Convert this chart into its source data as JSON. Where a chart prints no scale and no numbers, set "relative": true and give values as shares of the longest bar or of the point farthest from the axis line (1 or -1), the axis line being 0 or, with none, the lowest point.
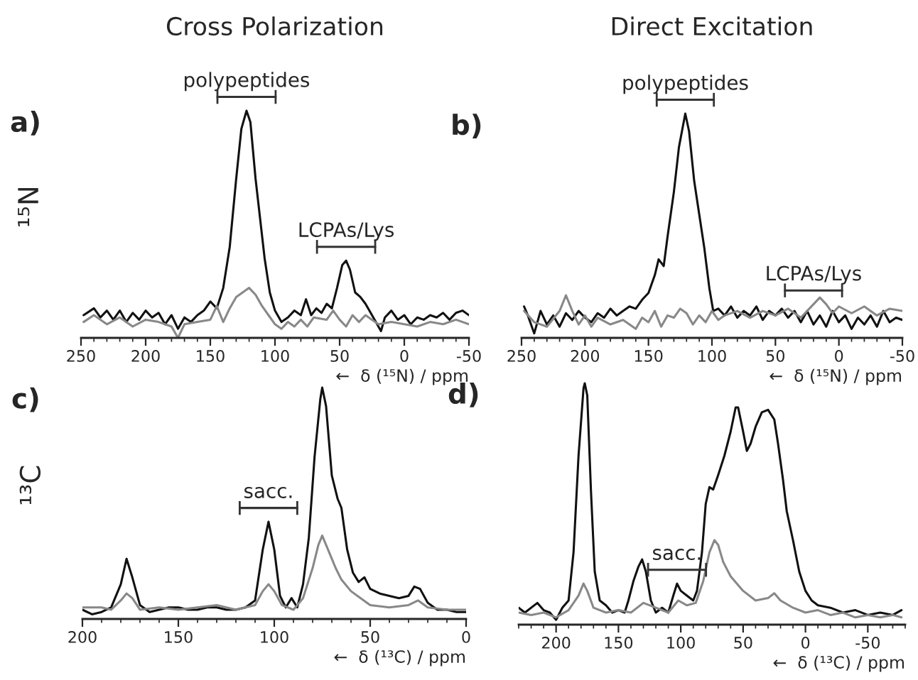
{
  "chart_data": [
    {
      "type": "line",
      "title": "Cross Polarization",
      "ylabel": "¹⁵N",
      "xlabel": "←  δ (¹⁵N) / ppm",
      "relative": true,
      "tick_labels": "x",
      "xlim": [
        250,
        -50
      ],
      "xticks": [
        250,
        200,
        150,
        100,
        50,
        0,
        -50
      ],
      "annotations": [
        "a)",
        {
          "text": "polypeptides",
          "x": 122,
          "y": 1.0
        },
        {
          "text": "LCPAs/Lys",
          "x": 45,
          "y": 0.34
        }
      ],
      "series": [
        {
          "color": "#111111",
          "x": [
            248,
            240,
            235,
            230,
            225,
            220,
            215,
            210,
            205,
            200,
            195,
            190,
            185,
            180,
            175,
            170,
            165,
            160,
            155,
            150,
            145,
            140,
            135,
            130,
            126,
            122,
            119,
            115,
            112,
            108,
            104,
            100,
            95,
            90,
            85,
            80,
            76,
            72,
            68,
            64,
            60,
            56,
            52,
            48,
            45,
            42,
            38,
            34,
            30,
            26,
            22,
            18,
            15,
            10,
            5,
            0,
            -5,
            -10,
            -15,
            -20,
            -25,
            -30,
            -35,
            -40,
            -45,
            -50
          ],
          "values": [
            0.1,
            0.13,
            0.09,
            0.12,
            0.08,
            0.12,
            0.07,
            0.11,
            0.08,
            0.12,
            0.09,
            0.11,
            0.06,
            0.1,
            0.04,
            0.09,
            0.07,
            0.1,
            0.12,
            0.16,
            0.13,
            0.22,
            0.4,
            0.7,
            0.92,
            1.0,
            0.95,
            0.7,
            0.55,
            0.35,
            0.2,
            0.12,
            0.07,
            0.09,
            0.12,
            0.1,
            0.17,
            0.1,
            0.13,
            0.11,
            0.15,
            0.13,
            0.22,
            0.32,
            0.34,
            0.3,
            0.2,
            0.18,
            0.15,
            0.11,
            0.07,
            0.03,
            0.09,
            0.12,
            0.08,
            0.1,
            0.06,
            0.09,
            0.08,
            0.1,
            0.09,
            0.11,
            0.08,
            0.11,
            0.12,
            0.1
          ]
        },
        {
          "color": "#888888",
          "x": [
            248,
            240,
            230,
            220,
            210,
            200,
            190,
            180,
            175,
            170,
            160,
            150,
            145,
            140,
            135,
            130,
            125,
            120,
            115,
            110,
            105,
            100,
            95,
            90,
            85,
            80,
            75,
            70,
            60,
            55,
            50,
            45,
            40,
            35,
            30,
            25,
            20,
            10,
            0,
            -10,
            -20,
            -30,
            -40,
            -50
          ],
          "values": [
            0.07,
            0.1,
            0.06,
            0.09,
            0.05,
            0.08,
            0.07,
            0.05,
            0.0,
            0.06,
            0.07,
            0.08,
            0.14,
            0.07,
            0.13,
            0.18,
            0.2,
            0.22,
            0.19,
            0.14,
            0.1,
            0.06,
            0.04,
            0.07,
            0.05,
            0.08,
            0.05,
            0.09,
            0.08,
            0.12,
            0.08,
            0.05,
            0.1,
            0.07,
            0.1,
            0.08,
            0.06,
            0.07,
            0.06,
            0.05,
            0.07,
            0.06,
            0.08,
            0.06
          ]
        }
      ]
    },
    {
      "type": "line",
      "title": "Direct Excitation",
      "xlabel": "←  δ (¹⁵N) / ppm",
      "relative": true,
      "tick_labels": "x",
      "xlim": [
        250,
        -50
      ],
      "xticks": [
        250,
        200,
        150,
        100,
        50,
        0,
        -50
      ],
      "annotations": [
        "b)",
        {
          "text": "polypeptides",
          "x": 121,
          "y": 1.0
        },
        {
          "text": "LCPAs/Lys",
          "x": 20,
          "y": 0.15
        }
      ],
      "series": [
        {
          "color": "#111111",
          "x": [
            248,
            245,
            240,
            235,
            230,
            225,
            220,
            215,
            210,
            205,
            200,
            195,
            190,
            185,
            180,
            175,
            170,
            165,
            160,
            155,
            150,
            145,
            142,
            138,
            135,
            130,
            126,
            121,
            118,
            114,
            110,
            106,
            102,
            99,
            95,
            90,
            85,
            80,
            75,
            70,
            65,
            60,
            55,
            50,
            45,
            40,
            35,
            30,
            25,
            20,
            15,
            10,
            5,
            0,
            -5,
            -10,
            -15,
            -20,
            -25,
            -30,
            -35,
            -40,
            -45,
            -50
          ],
          "values": [
            0.14,
            0.1,
            0.02,
            0.12,
            0.06,
            0.1,
            0.05,
            0.11,
            0.08,
            0.12,
            0.09,
            0.07,
            0.11,
            0.09,
            0.13,
            0.1,
            0.12,
            0.14,
            0.13,
            0.17,
            0.2,
            0.28,
            0.35,
            0.32,
            0.45,
            0.65,
            0.85,
            1.0,
            0.92,
            0.7,
            0.55,
            0.4,
            0.22,
            0.12,
            0.13,
            0.1,
            0.14,
            0.09,
            0.12,
            0.1,
            0.14,
            0.08,
            0.12,
            0.1,
            0.13,
            0.09,
            0.12,
            0.07,
            0.12,
            0.06,
            0.1,
            0.05,
            0.12,
            0.07,
            0.1,
            0.04,
            0.09,
            0.06,
            0.1,
            0.05,
            0.12,
            0.07,
            0.09,
            0.08
          ]
        },
        {
          "color": "#888888",
          "x": [
            248,
            240,
            230,
            220,
            215,
            210,
            205,
            200,
            195,
            190,
            180,
            170,
            160,
            155,
            150,
            145,
            140,
            135,
            130,
            125,
            120,
            115,
            110,
            105,
            100,
            95,
            90,
            80,
            70,
            60,
            50,
            40,
            30,
            20,
            15,
            10,
            5,
            0,
            -10,
            -20,
            -30,
            -40,
            -50
          ],
          "values": [
            0.12,
            0.07,
            0.05,
            0.12,
            0.19,
            0.12,
            0.06,
            0.1,
            0.05,
            0.09,
            0.06,
            0.08,
            0.04,
            0.09,
            0.07,
            0.12,
            0.05,
            0.1,
            0.09,
            0.13,
            0.11,
            0.06,
            0.1,
            0.07,
            0.12,
            0.08,
            0.1,
            0.12,
            0.09,
            0.12,
            0.1,
            0.13,
            0.09,
            0.15,
            0.18,
            0.15,
            0.11,
            0.14,
            0.11,
            0.14,
            0.1,
            0.13,
            0.12
          ]
        }
      ]
    },
    {
      "type": "line",
      "ylabel": "¹³C",
      "xlabel": "←  δ (¹³C) / ppm",
      "relative": true,
      "tick_labels": "x",
      "xlim": [
        200,
        0
      ],
      "xticks": [
        200,
        150,
        100,
        50,
        0
      ],
      "annotations": [
        "c)",
        {
          "text": "sacc.",
          "x": 103,
          "y": 0.42
        }
      ],
      "series": [
        {
          "color": "#111111",
          "x": [
            200,
            195,
            190,
            185,
            180,
            177,
            174,
            170,
            165,
            160,
            155,
            150,
            145,
            140,
            135,
            130,
            125,
            120,
            115,
            110,
            106,
            103,
            100,
            97,
            94,
            91,
            88,
            85,
            82,
            79,
            76,
            75,
            73,
            70,
            67,
            65,
            62,
            59,
            56,
            53,
            50,
            45,
            40,
            35,
            30,
            27,
            24,
            20,
            15,
            10,
            5,
            0
          ],
          "values": [
            0.04,
            0.02,
            0.03,
            0.05,
            0.15,
            0.26,
            0.18,
            0.06,
            0.03,
            0.04,
            0.05,
            0.05,
            0.04,
            0.04,
            0.05,
            0.05,
            0.04,
            0.04,
            0.05,
            0.08,
            0.3,
            0.42,
            0.3,
            0.1,
            0.05,
            0.09,
            0.05,
            0.15,
            0.35,
            0.7,
            0.95,
            1.0,
            0.92,
            0.62,
            0.52,
            0.48,
            0.3,
            0.2,
            0.16,
            0.18,
            0.13,
            0.11,
            0.1,
            0.09,
            0.1,
            0.14,
            0.13,
            0.07,
            0.04,
            0.04,
            0.03,
            0.03
          ]
        },
        {
          "color": "#888888",
          "x": [
            200,
            190,
            185,
            180,
            177,
            174,
            170,
            160,
            150,
            140,
            130,
            120,
            110,
            106,
            103,
            100,
            96,
            90,
            85,
            80,
            77,
            75,
            72,
            68,
            65,
            60,
            55,
            50,
            40,
            30,
            25,
            20,
            10,
            0
          ],
          "values": [
            0.05,
            0.05,
            0.04,
            0.08,
            0.11,
            0.09,
            0.04,
            0.05,
            0.04,
            0.05,
            0.06,
            0.04,
            0.06,
            0.12,
            0.15,
            0.12,
            0.06,
            0.04,
            0.09,
            0.22,
            0.32,
            0.36,
            0.3,
            0.22,
            0.17,
            0.12,
            0.09,
            0.06,
            0.05,
            0.06,
            0.08,
            0.05,
            0.04,
            0.04
          ]
        }
      ]
    },
    {
      "type": "line",
      "xlabel": "←  δ (¹³C) / ppm",
      "relative": true,
      "tick_labels": "x",
      "xlim": [
        230,
        -80
      ],
      "xticks": [
        200,
        150,
        100,
        50,
        0,
        -50
      ],
      "annotations": [
        "d)",
        {
          "text": "sacc.",
          "x": 103,
          "y": 0.17
        }
      ],
      "series": [
        {
          "color": "#111111",
          "x": [
            230,
            225,
            215,
            210,
            205,
            200,
            195,
            190,
            186,
            182,
            178,
            177,
            175,
            172,
            169,
            165,
            160,
            155,
            150,
            145,
            142,
            138,
            134,
            131,
            128,
            124,
            120,
            115,
            110,
            106,
            103,
            100,
            95,
            90,
            87,
            83,
            80,
            77,
            74,
            70,
            65,
            60,
            56,
            54,
            50,
            47,
            44,
            40,
            35,
            30,
            25,
            22,
            18,
            15,
            10,
            5,
            0,
            -5,
            -10,
            -20,
            -30,
            -40,
            -50,
            -60,
            -70,
            -77
          ],
          "values": [
            0.07,
            0.05,
            0.09,
            0.06,
            0.05,
            0.02,
            0.07,
            0.1,
            0.3,
            0.7,
            0.98,
            1.0,
            0.95,
            0.55,
            0.22,
            0.1,
            0.08,
            0.05,
            0.06,
            0.05,
            0.1,
            0.18,
            0.24,
            0.27,
            0.22,
            0.1,
            0.05,
            0.07,
            0.05,
            0.12,
            0.17,
            0.14,
            0.12,
            0.1,
            0.14,
            0.3,
            0.5,
            0.57,
            0.56,
            0.62,
            0.7,
            0.8,
            0.9,
            0.9,
            0.8,
            0.72,
            0.75,
            0.82,
            0.88,
            0.89,
            0.85,
            0.75,
            0.6,
            0.47,
            0.35,
            0.22,
            0.14,
            0.1,
            0.08,
            0.07,
            0.05,
            0.06,
            0.04,
            0.05,
            0.04,
            0.06
          ]
        },
        {
          "color": "#888888",
          "x": [
            230,
            220,
            210,
            200,
            190,
            182,
            178,
            175,
            170,
            160,
            150,
            140,
            130,
            120,
            110,
            102,
            95,
            88,
            82,
            77,
            73,
            70,
            66,
            60,
            55,
            50,
            40,
            30,
            25,
            20,
            10,
            0,
            -10,
            -20,
            -30,
            -40,
            -50,
            -60,
            -70,
            -77
          ],
          "values": [
            0.05,
            0.04,
            0.05,
            0.03,
            0.06,
            0.12,
            0.17,
            0.14,
            0.07,
            0.05,
            0.06,
            0.05,
            0.09,
            0.07,
            0.05,
            0.1,
            0.08,
            0.09,
            0.18,
            0.3,
            0.35,
            0.33,
            0.26,
            0.2,
            0.17,
            0.14,
            0.1,
            0.11,
            0.13,
            0.1,
            0.07,
            0.05,
            0.06,
            0.04,
            0.05,
            0.03,
            0.04,
            0.03,
            0.04,
            0.03
          ]
        }
      ]
    }
  ]
}
